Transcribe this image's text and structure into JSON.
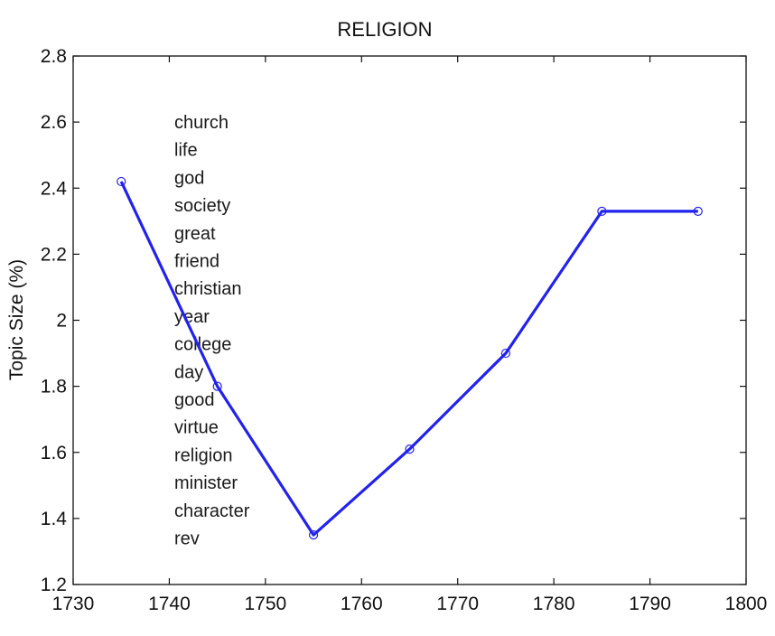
{
  "chart_data": {
    "type": "line",
    "title": "RELIGION",
    "xlabel": "",
    "ylabel": "Topic Size (%)",
    "xlim": [
      1730,
      1800
    ],
    "ylim": [
      1.2,
      2.8
    ],
    "x_ticks": [
      1730,
      1740,
      1750,
      1760,
      1770,
      1780,
      1790,
      1800
    ],
    "y_ticks": [
      1.2,
      1.4,
      1.6,
      1.8,
      2,
      2.2,
      2.4,
      2.6,
      2.8
    ],
    "x_tick_labels": [
      "1730",
      "1740",
      "1750",
      "1760",
      "1770",
      "1780",
      "1790",
      "1800"
    ],
    "y_tick_labels": [
      "1.2",
      "1.4",
      "1.6",
      "1.8",
      "2",
      "2.2",
      "2.4",
      "2.6",
      "2.8"
    ],
    "grid": false,
    "series": [
      {
        "x": [
          1735,
          1745,
          1755,
          1765,
          1775,
          1785,
          1795
        ],
        "y": [
          2.42,
          1.8,
          1.35,
          1.61,
          1.9,
          2.33,
          2.33
        ],
        "color": "#2222ee",
        "marker": "circle"
      }
    ],
    "annotations": {
      "words": [
        "church",
        "life",
        "god",
        "society",
        "great",
        "friend",
        "christian",
        "year",
        "college",
        "day",
        "good",
        "virtue",
        "religion",
        "minister",
        "character",
        "rev"
      ]
    }
  }
}
